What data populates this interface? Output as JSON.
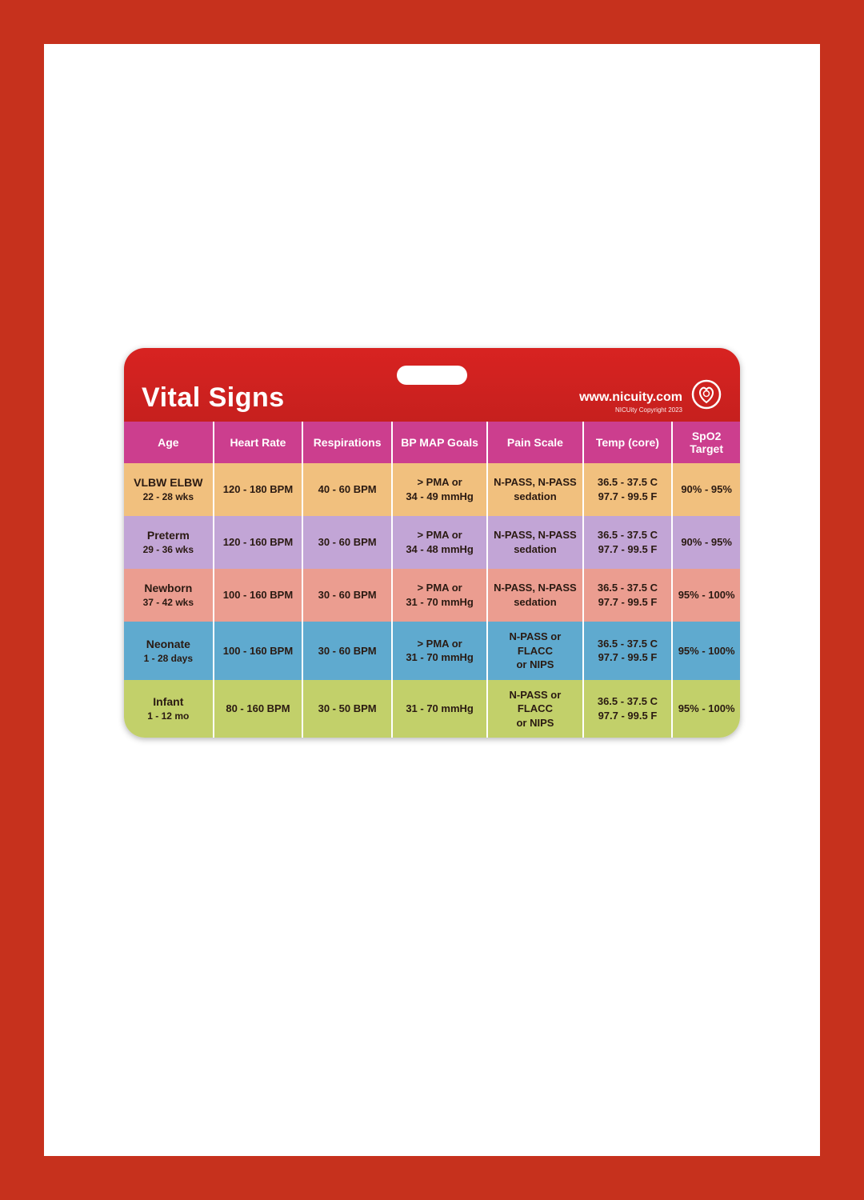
{
  "card": {
    "title": "Vital Signs",
    "url": "www.nicuity.com",
    "copyright": "NICUity Copyright 2023",
    "header_bg": "#c6201e",
    "columns_bg": "#cc3e8e"
  },
  "columns": [
    "Age",
    "Heart Rate",
    "Respirations",
    "BP MAP Goals",
    "Pain Scale",
    "Temp (core)",
    "SpO2 Target"
  ],
  "row_colors": [
    "#f1c07e",
    "#c2a5d6",
    "#eb9d90",
    "#5faacf",
    "#c2d06a"
  ],
  "rows": [
    {
      "age_label": "VLBW ELBW",
      "age_range": "22 - 28 wks",
      "hr": "120 - 180 BPM",
      "resp": "40 - 60 BPM",
      "bp_l1": "> PMA or",
      "bp_l2": "34 - 49 mmHg",
      "pain_l1": "N-PASS, N-PASS",
      "pain_l2": "sedation",
      "temp_l1": "36.5 - 37.5 C",
      "temp_l2": "97.7 - 99.5 F",
      "spo2": "90% - 95%"
    },
    {
      "age_label": "Preterm",
      "age_range": "29 - 36 wks",
      "hr": "120 - 160 BPM",
      "resp": "30 - 60 BPM",
      "bp_l1": "> PMA or",
      "bp_l2": "34 - 48 mmHg",
      "pain_l1": "N-PASS, N-PASS",
      "pain_l2": "sedation",
      "temp_l1": "36.5 - 37.5 C",
      "temp_l2": "97.7 - 99.5 F",
      "spo2": "90% - 95%"
    },
    {
      "age_label": "Newborn",
      "age_range": "37 - 42 wks",
      "hr": "100 - 160 BPM",
      "resp": "30 - 60 BPM",
      "bp_l1": "> PMA or",
      "bp_l2": "31 - 70 mmHg",
      "pain_l1": "N-PASS, N-PASS",
      "pain_l2": "sedation",
      "temp_l1": "36.5 - 37.5 C",
      "temp_l2": "97.7 - 99.5 F",
      "spo2": "95% - 100%"
    },
    {
      "age_label": "Neonate",
      "age_range": "1 - 28 days",
      "hr": "100 - 160 BPM",
      "resp": "30 - 60 BPM",
      "bp_l1": "> PMA or",
      "bp_l2": "31 - 70 mmHg",
      "pain_l1": "N-PASS or FLACC",
      "pain_l2": "or NIPS",
      "temp_l1": "36.5 - 37.5 C",
      "temp_l2": "97.7 - 99.5 F",
      "spo2": "95% - 100%"
    },
    {
      "age_label": "Infant",
      "age_range": "1 - 12 mo",
      "hr": "80 - 160 BPM",
      "resp": "30 - 50 BPM",
      "bp_l1": "31 - 70 mmHg",
      "bp_l2": "",
      "pain_l1": "N-PASS or FLACC",
      "pain_l2": "or NIPS",
      "temp_l1": "36.5 - 37.5 C",
      "temp_l2": "97.7 - 99.5 F",
      "spo2": "95% - 100%"
    }
  ]
}
